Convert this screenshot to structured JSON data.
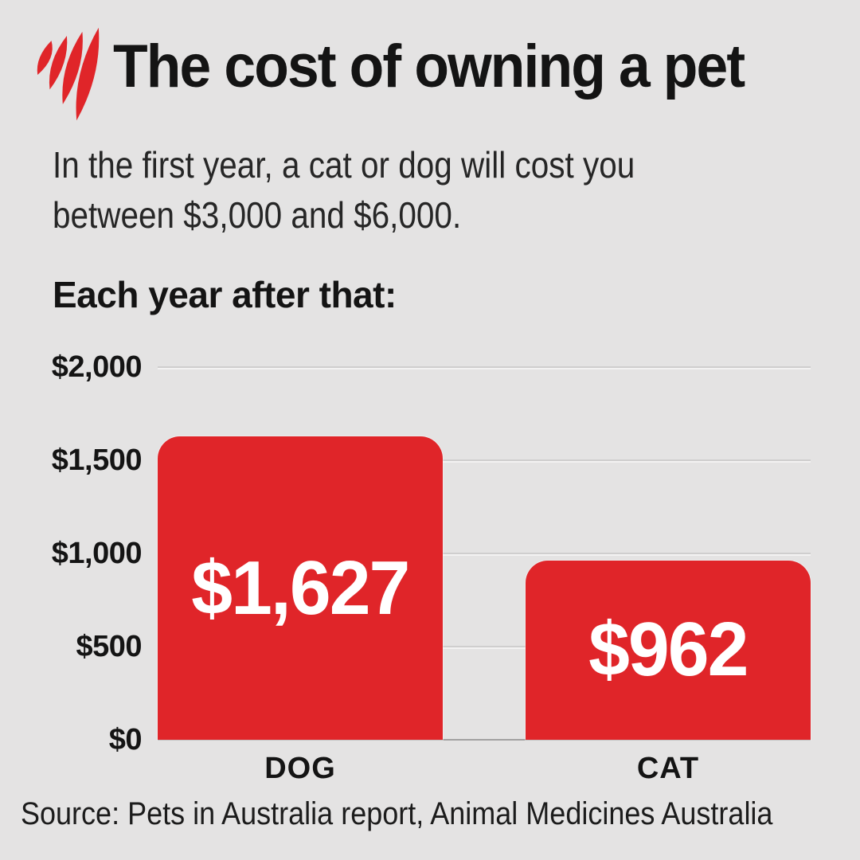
{
  "page": {
    "background": "#e4e3e3"
  },
  "header": {
    "logo": "sbs-logo",
    "brand_color": "#e02529",
    "title": "The cost of owning a pet"
  },
  "intro": {
    "lines": [
      "In the first year, a cat or dog will cost you",
      "between $3,000 and $6,000."
    ]
  },
  "chart_data": {
    "type": "bar",
    "title": "Each year after that:",
    "categories": [
      "DOG",
      "CAT"
    ],
    "values": [
      1627,
      962
    ],
    "value_labels": [
      "$1,627",
      "$962"
    ],
    "xlabel": "",
    "ylabel": "",
    "ylim": [
      0,
      2000
    ],
    "yticks": [
      2000,
      1500,
      1000,
      500,
      0
    ],
    "ytick_labels": [
      "$2,000",
      "$1,500",
      "$1,000",
      "$500",
      "$0"
    ],
    "bar_color": "#e02529",
    "value_label_color": "#ffffff",
    "grid": true,
    "gridline_color": "#cfcece",
    "baseline_color": "#a2a1a1",
    "legend_position": "none",
    "source": "Source: Pets in Australia report, Animal Medicines Australia"
  }
}
